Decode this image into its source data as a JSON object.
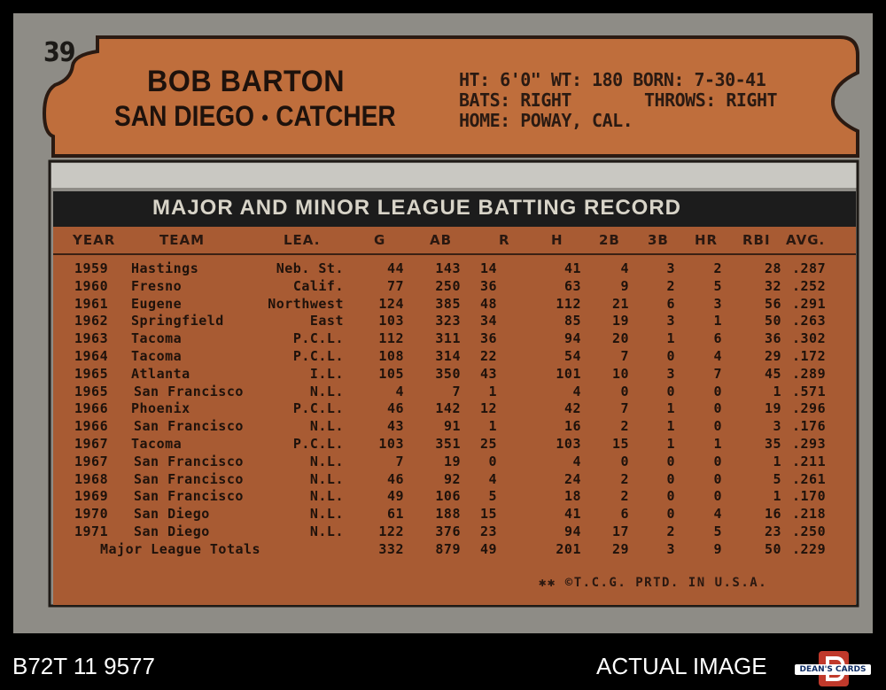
{
  "card": {
    "number": "39",
    "player_name": "BOB BARTON",
    "team": "SAN DIEGO",
    "bullet": "●",
    "position": "CATCHER",
    "bio": {
      "line1": "HT: 6'0\"  WT: 180  BORN: 7-30-41",
      "line2_left": "BATS: RIGHT",
      "line2_right": "THROWS: RIGHT",
      "line3": "HOME: POWAY, CAL."
    },
    "record_title": "MAJOR AND MINOR LEAGUE BATTING RECORD",
    "columns": [
      "YEAR",
      "TEAM",
      "LEA.",
      "G",
      "AB",
      "R",
      "H",
      "2B",
      "3B",
      "HR",
      "RBI",
      "AVG."
    ],
    "rows": [
      [
        "1959",
        "Hastings",
        "Neb. St.",
        "44",
        "143",
        "14",
        "41",
        "4",
        "3",
        "2",
        "28",
        ".287"
      ],
      [
        "1960",
        "Fresno",
        "Calif.",
        "77",
        "250",
        "36",
        "63",
        "9",
        "2",
        "5",
        "32",
        ".252"
      ],
      [
        "1961",
        "Eugene",
        "Northwest",
        "124",
        "385",
        "48",
        "112",
        "21",
        "6",
        "3",
        "56",
        ".291"
      ],
      [
        "1962",
        "Springfield",
        "East",
        "103",
        "323",
        "34",
        "85",
        "19",
        "3",
        "1",
        "50",
        ".263"
      ],
      [
        "1963",
        "Tacoma",
        "P.C.L.",
        "112",
        "311",
        "36",
        "94",
        "20",
        "1",
        "6",
        "36",
        ".302"
      ],
      [
        "1964",
        "Tacoma",
        "P.C.L.",
        "108",
        "314",
        "22",
        "54",
        "7",
        "0",
        "4",
        "29",
        ".172"
      ],
      [
        "1965",
        "Atlanta",
        "I.L.",
        "105",
        "350",
        "43",
        "101",
        "10",
        "3",
        "7",
        "45",
        ".289"
      ],
      [
        "1965",
        "San Francisco",
        "N.L.",
        "4",
        "7",
        "1",
        "4",
        "0",
        "0",
        "0",
        "1",
        ".571"
      ],
      [
        "1966",
        "Phoenix",
        "P.C.L.",
        "46",
        "142",
        "12",
        "42",
        "7",
        "1",
        "0",
        "19",
        ".296"
      ],
      [
        "1966",
        "San Francisco",
        "N.L.",
        "43",
        "91",
        "1",
        "16",
        "2",
        "1",
        "0",
        "3",
        ".176"
      ],
      [
        "1967",
        "Tacoma",
        "P.C.L.",
        "103",
        "351",
        "25",
        "103",
        "15",
        "1",
        "1",
        "35",
        ".293"
      ],
      [
        "1967",
        "San Francisco",
        "N.L.",
        "7",
        "19",
        "0",
        "4",
        "0",
        "0",
        "0",
        "1",
        ".211"
      ],
      [
        "1968",
        "San Francisco",
        "N.L.",
        "46",
        "92",
        "4",
        "24",
        "2",
        "0",
        "0",
        "5",
        ".261"
      ],
      [
        "1969",
        "San Francisco",
        "N.L.",
        "49",
        "106",
        "5",
        "18",
        "2",
        "0",
        "0",
        "1",
        ".170"
      ],
      [
        "1970",
        "San Diego",
        "N.L.",
        "61",
        "188",
        "15",
        "41",
        "6",
        "0",
        "4",
        "16",
        ".218"
      ],
      [
        "1971",
        "San Diego",
        "N.L.",
        "122",
        "376",
        "23",
        "94",
        "17",
        "2",
        "5",
        "23",
        ".250"
      ]
    ],
    "totals": {
      "label": "Major League Totals",
      "values": [
        "332",
        "879",
        "49",
        "201",
        "29",
        "3",
        "9",
        "50",
        ".229"
      ]
    },
    "footer": "✱✱ ©T.C.G. PRTD. IN U.S.A."
  },
  "overlay": {
    "cert_number": "B72T 11 9577",
    "actual_label": "ACTUAL IMAGE",
    "logo_text": "DEAN'S CARDS"
  },
  "colors": {
    "card_gray": "#8e8c86",
    "plaque_orange": "#c0703d",
    "table_orange": "#a85b33",
    "title_bar": "#1c1c1c"
  }
}
